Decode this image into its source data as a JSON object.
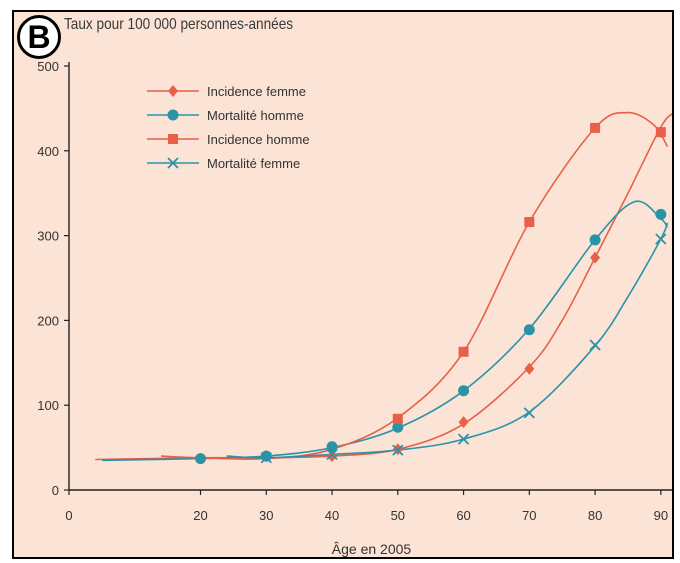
{
  "panel_label": "B",
  "chart_data": {
    "type": "line",
    "title": "Taux pour 100 000 personnes-années",
    "xlabel": "Âge en 2005",
    "ylabel": "",
    "xlim": [
      0,
      92
    ],
    "ylim": [
      0,
      500
    ],
    "xticks": [
      0,
      20,
      30,
      40,
      50,
      60,
      70,
      80,
      90
    ],
    "yticks": [
      0,
      100,
      200,
      300,
      400,
      500
    ],
    "grid": false,
    "legend_position": "top-left",
    "series": [
      {
        "name": "Incidence femme",
        "marker": "diamond",
        "color": "#e8604a",
        "x": [
          30,
          40,
          50,
          60,
          70,
          80,
          90
        ],
        "values": [
          40,
          40,
          48,
          80,
          143,
          274,
          422
        ],
        "curve_x": [
          4,
          20,
          30,
          40,
          50,
          60,
          70,
          75,
          80,
          85,
          90,
          92
        ],
        "curve_y": [
          36,
          38,
          38,
          40,
          48,
          78,
          145,
          200,
          274,
          350,
          428,
          445
        ]
      },
      {
        "name": "Mortalité homme",
        "marker": "circle",
        "color": "#2a93a8",
        "x": [
          20,
          30,
          40,
          50,
          60,
          70,
          80,
          90
        ],
        "values": [
          37,
          40,
          51,
          74,
          117,
          189,
          295,
          325
        ],
        "curve_x": [
          5,
          20,
          30,
          40,
          50,
          60,
          70,
          80,
          86,
          90,
          91
        ],
        "curve_y": [
          35,
          37,
          40,
          50,
          73,
          117,
          190,
          295,
          340,
          320,
          310
        ]
      },
      {
        "name": "Incidence homme",
        "marker": "square",
        "color": "#e8604a",
        "x": [
          50,
          60,
          70,
          80,
          90
        ],
        "values": [
          84,
          163,
          316,
          427,
          422
        ],
        "curve_x": [
          14,
          20,
          30,
          40,
          50,
          60,
          70,
          80,
          85,
          89,
          91
        ],
        "curve_y": [
          40,
          38,
          37,
          48,
          85,
          163,
          316,
          427,
          445,
          430,
          405
        ]
      },
      {
        "name": "Mortalité femme",
        "marker": "x",
        "color": "#2a93a8",
        "x": [
          30,
          40,
          50,
          60,
          70,
          80,
          90
        ],
        "values": [
          38,
          42,
          47,
          60,
          91,
          171,
          296
        ],
        "curve_x": [
          24,
          30,
          40,
          50,
          60,
          70,
          80,
          85,
          90,
          91
        ],
        "curve_y": [
          40,
          38,
          42,
          47,
          60,
          92,
          170,
          228,
          296,
          315
        ]
      }
    ]
  }
}
